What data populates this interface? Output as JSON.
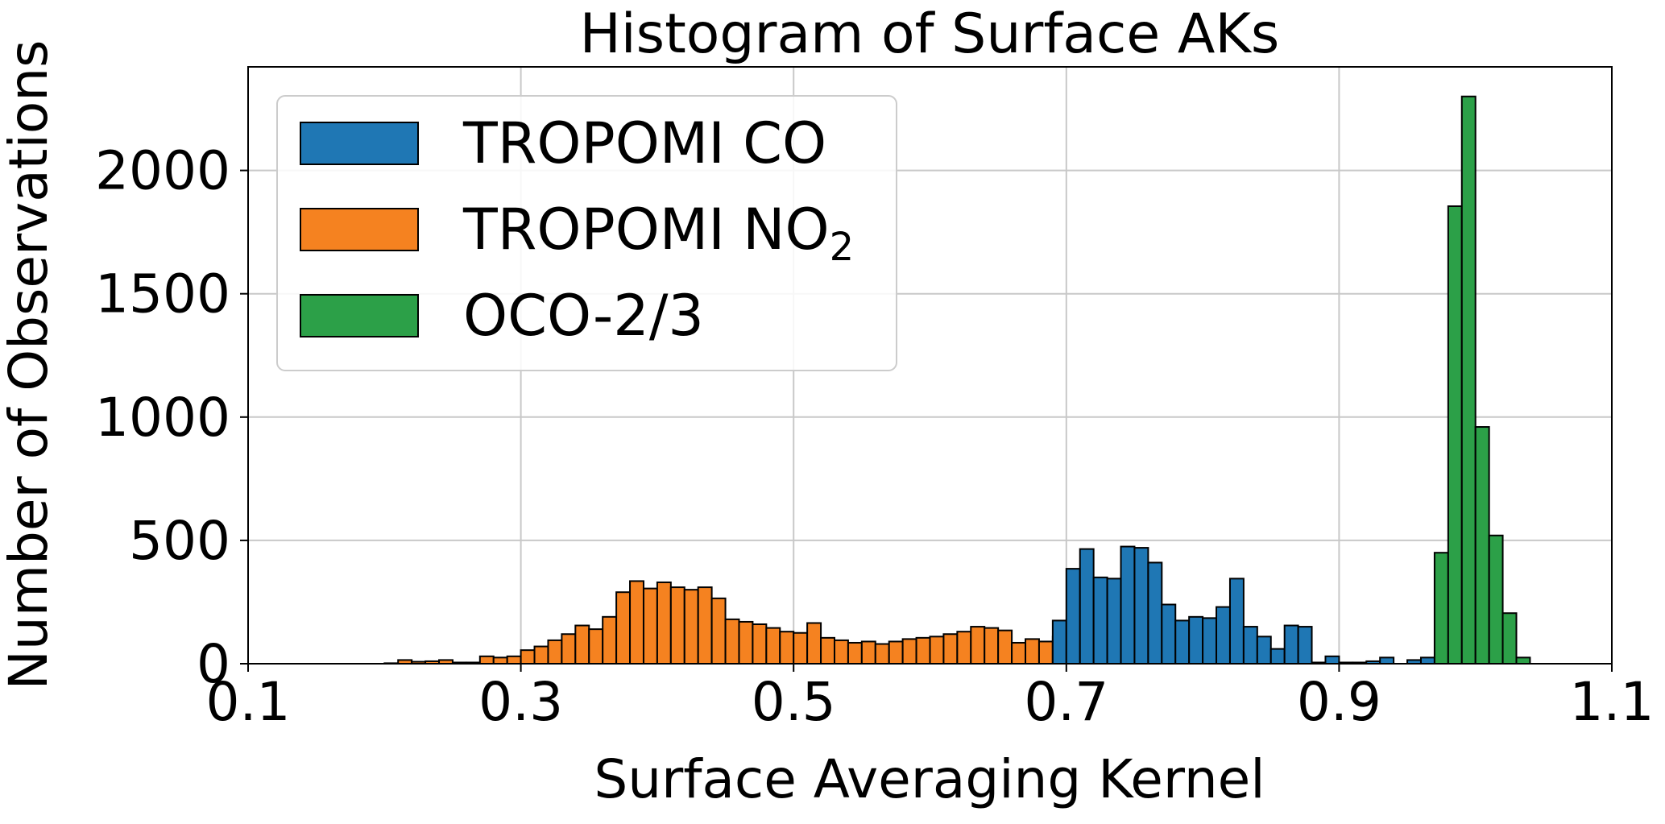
{
  "chart_data": {
    "type": "bar",
    "title": "Histogram of Surface AKs",
    "xlabel": "Surface Averaging Kernel",
    "ylabel": "Number of Observations",
    "xlim": [
      0.1,
      1.1
    ],
    "ylim": [
      0,
      2420
    ],
    "xticks": [
      "0.1",
      "0.3",
      "0.5",
      "0.7",
      "0.9",
      "1.1"
    ],
    "yticks": [
      "0",
      "500",
      "1000",
      "1500",
      "2000"
    ],
    "grid": true,
    "legend_position": "top-left",
    "bin_width": 0.01,
    "series": [
      {
        "name": "TROPOMI NO",
        "name_subscript": "2",
        "color": "#f58220",
        "bin_start": 0.2,
        "values": [
          2,
          15,
          8,
          10,
          15,
          5,
          5,
          30,
          25,
          30,
          55,
          70,
          95,
          120,
          155,
          140,
          190,
          290,
          335,
          305,
          330,
          310,
          300,
          310,
          265,
          180,
          170,
          160,
          145,
          130,
          125,
          165,
          105,
          95,
          85,
          90,
          80,
          90,
          100,
          105,
          110,
          120,
          130,
          150,
          145,
          135,
          85,
          100,
          90,
          110,
          20
        ]
      },
      {
        "name": "TROPOMI CO",
        "name_subscript": "",
        "color": "#1f77b4",
        "bin_start": 0.69,
        "values": [
          175,
          385,
          465,
          350,
          345,
          475,
          470,
          410,
          240,
          175,
          190,
          185,
          230,
          345,
          150,
          110,
          60,
          155,
          150,
          5,
          30,
          5,
          5,
          10,
          25,
          0,
          15,
          25
        ]
      },
      {
        "name": "OCO-2/3",
        "name_subscript": "",
        "color": "#2ca048",
        "bin_start": 0.97,
        "values": [
          450,
          1855,
          2300,
          960,
          520,
          205,
          25
        ]
      }
    ]
  }
}
